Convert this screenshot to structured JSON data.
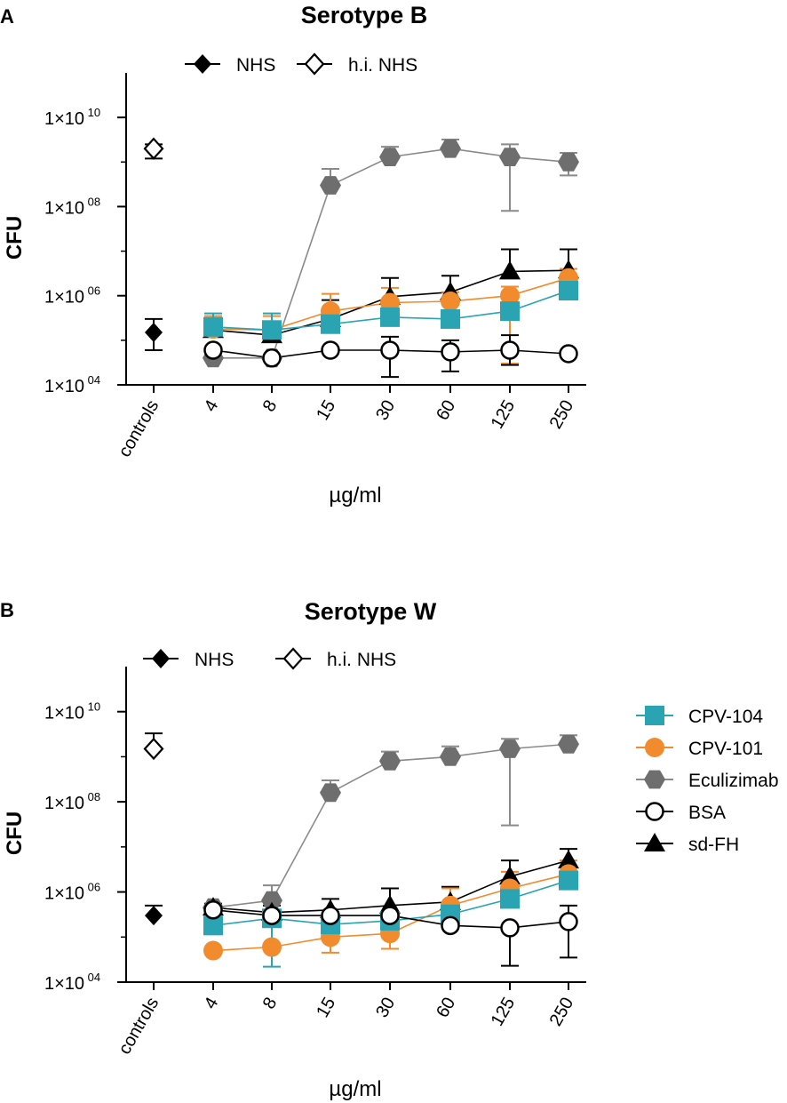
{
  "figure_caption": "",
  "colors": {
    "cpv104": "#2aa3b3",
    "cpv101": "#f28a2e",
    "eculizimab": "#6e6e6e",
    "bsa": "#000000",
    "sdfh": "#000000",
    "axis": "#000000"
  },
  "legend": {
    "cpv104": "CPV-104",
    "cpv101": "CPV-101",
    "eculizimab": "Eculizimab",
    "bsa": "BSA",
    "sdfh": "sd-FH"
  },
  "chart_data": [
    {
      "panel_letter": "A",
      "type": "line",
      "title": "Serotype B",
      "xlabel": "µg/ml",
      "ylabel": "CFU",
      "yscale": "log",
      "ylim": [
        10000,
        100000000000
      ],
      "yticks": [
        {
          "value": 10000,
          "base": "1×10",
          "exp": "04"
        },
        {
          "value": 1000000,
          "base": "1×10",
          "exp": "06"
        },
        {
          "value": 100000000,
          "base": "1×10",
          "exp": "08"
        },
        {
          "value": 10000000000,
          "base": "1×10",
          "exp": "10"
        }
      ],
      "categories": [
        "controls",
        "4",
        "8",
        "15",
        "30",
        "60",
        "125",
        "250"
      ],
      "controls": [
        {
          "name": "NHS",
          "value": 150000,
          "err_low": 60000,
          "err_high": 300000
        },
        {
          "name": "h.i. NHS",
          "value": 2000000000,
          "err_low": 1200000000,
          "err_high": 2500000000
        }
      ],
      "series": [
        {
          "key": "eculizimab",
          "name": "Eculizimab",
          "x": [
            "4",
            "8",
            "15",
            "30",
            "60",
            "125",
            "250"
          ],
          "values": [
            40000,
            40000,
            300000000,
            1300000000,
            2000000000,
            1300000000,
            1000000000
          ],
          "err_high": [
            null,
            null,
            700000000,
            2200000000,
            3200000000,
            2500000000,
            1600000000
          ],
          "err_low": [
            null,
            null,
            null,
            null,
            null,
            80000000,
            500000000
          ]
        },
        {
          "key": "sdfh",
          "name": "sd-FH",
          "x": [
            "4",
            "8",
            "15",
            "30",
            "60",
            "125",
            "250"
          ],
          "values": [
            170000,
            130000,
            300000,
            950000,
            1200000,
            3500000,
            3700000
          ],
          "err_high": [
            250000,
            200000,
            800000,
            2500000,
            2800000,
            11000000,
            11000000
          ],
          "err_low": [
            null,
            null,
            null,
            null,
            null,
            null,
            null
          ]
        },
        {
          "key": "cpv101",
          "name": "CPV-101",
          "x": [
            "4",
            "8",
            "15",
            "30",
            "60",
            "125",
            "250"
          ],
          "values": [
            180000,
            170000,
            450000,
            700000,
            750000,
            1000000,
            2500000
          ],
          "err_high": [
            350000,
            350000,
            1100000,
            1500000,
            1200000,
            1600000,
            4000000
          ],
          "err_low": [
            null,
            null,
            null,
            null,
            null,
            30000,
            null
          ]
        },
        {
          "key": "cpv104",
          "name": "CPV-104",
          "x": [
            "4",
            "8",
            "15",
            "30",
            "60",
            "125",
            "250"
          ],
          "values": [
            200000,
            170000,
            230000,
            330000,
            300000,
            450000,
            1300000
          ],
          "err_high": [
            400000,
            400000,
            null,
            null,
            null,
            null,
            null
          ],
          "err_low": [
            null,
            null,
            null,
            null,
            null,
            null,
            null
          ]
        },
        {
          "key": "bsa",
          "name": "BSA",
          "x": [
            "4",
            "8",
            "15",
            "30",
            "60",
            "125",
            "250"
          ],
          "values": [
            60000,
            40000,
            60000,
            60000,
            55000,
            60000,
            50000
          ],
          "err_high": [
            null,
            null,
            null,
            120000,
            100000,
            130000,
            null
          ],
          "err_low": [
            null,
            null,
            null,
            15000,
            20000,
            28000,
            null
          ]
        }
      ]
    },
    {
      "panel_letter": "B",
      "type": "line",
      "title": "Serotype W",
      "xlabel": "µg/ml",
      "ylabel": "CFU",
      "yscale": "log",
      "ylim": [
        10000,
        100000000000
      ],
      "yticks": [
        {
          "value": 10000,
          "base": "1×10",
          "exp": "04"
        },
        {
          "value": 1000000,
          "base": "1×10",
          "exp": "06"
        },
        {
          "value": 100000000,
          "base": "1×10",
          "exp": "08"
        },
        {
          "value": 10000000000,
          "base": "1×10",
          "exp": "10"
        }
      ],
      "categories": [
        "controls",
        "4",
        "8",
        "15",
        "30",
        "60",
        "125",
        "250"
      ],
      "controls": [
        {
          "name": "NHS",
          "value": 300000,
          "err_low": null,
          "err_high": 500000
        },
        {
          "name": "h.i. NHS",
          "value": 1500000000,
          "err_low": null,
          "err_high": 3300000000
        }
      ],
      "series": [
        {
          "key": "eculizimab",
          "name": "Eculizimab",
          "x": [
            "4",
            "8",
            "15",
            "30",
            "60",
            "125",
            "250"
          ],
          "values": [
            450000,
            650000,
            160000000,
            800000000,
            1000000000,
            1500000000,
            1900000000
          ],
          "err_high": [
            550000,
            1400000,
            300000000,
            1300000000,
            1700000000,
            2500000000,
            3000000000
          ],
          "err_low": [
            null,
            null,
            null,
            null,
            null,
            30000000,
            null
          ]
        },
        {
          "key": "sdfh",
          "name": "sd-FH",
          "x": [
            "4",
            "8",
            "15",
            "30",
            "60",
            "125",
            "250"
          ],
          "values": [
            450000,
            350000,
            400000,
            500000,
            600000,
            2200000,
            5000000
          ],
          "err_high": [
            550000,
            500000,
            700000,
            1200000,
            1300000,
            5000000,
            9000000
          ],
          "err_low": [
            null,
            null,
            null,
            null,
            null,
            null,
            null
          ]
        },
        {
          "key": "cpv101",
          "name": "CPV-101",
          "x": [
            "4",
            "8",
            "15",
            "30",
            "60",
            "125",
            "250"
          ],
          "values": [
            50000,
            60000,
            100000,
            120000,
            500000,
            1200000,
            2500000
          ],
          "err_high": [
            null,
            null,
            null,
            null,
            1200000,
            2800000,
            5000000
          ],
          "err_low": [
            null,
            null,
            45000,
            55000,
            null,
            null,
            null
          ]
        },
        {
          "key": "cpv104",
          "name": "CPV-104",
          "x": [
            "4",
            "8",
            "15",
            "30",
            "60",
            "125",
            "250"
          ],
          "values": [
            180000,
            260000,
            190000,
            230000,
            320000,
            700000,
            1800000
          ],
          "err_high": [
            null,
            null,
            null,
            null,
            null,
            null,
            null
          ],
          "err_low": [
            null,
            22000,
            null,
            null,
            null,
            null,
            null
          ]
        },
        {
          "key": "bsa",
          "name": "BSA",
          "x": [
            "4",
            "8",
            "15",
            "30",
            "60",
            "125",
            "250"
          ],
          "values": [
            400000,
            300000,
            300000,
            300000,
            180000,
            160000,
            220000
          ],
          "err_high": [
            null,
            null,
            null,
            null,
            null,
            null,
            500000
          ],
          "err_low": [
            null,
            null,
            null,
            null,
            null,
            23000,
            35000
          ]
        }
      ]
    }
  ]
}
